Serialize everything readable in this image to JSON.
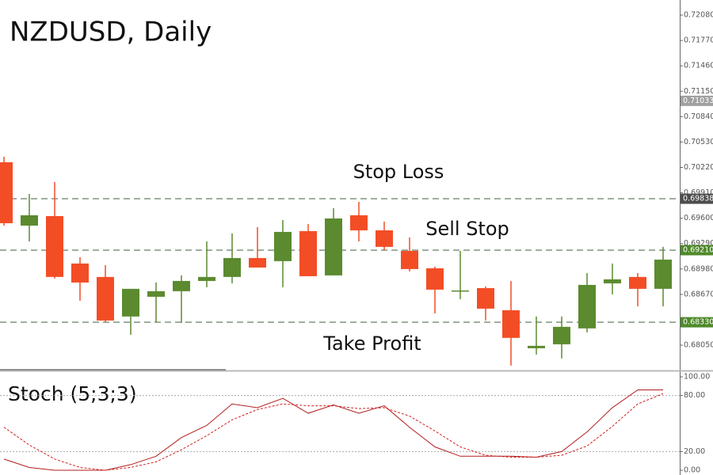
{
  "chart_data": [
    {
      "type": "candlestick",
      "title": "NZDUSD, Daily",
      "up_color": "#5b8a2f",
      "down_color": "#f34d26",
      "open": [
        0.70283,
        0.6951,
        0.69626,
        0.69047,
        0.68883,
        0.684,
        0.68641,
        0.68709,
        0.68834,
        0.68883,
        0.69114,
        0.69076,
        0.69443,
        0.68902,
        0.69636,
        0.69452,
        0.69201,
        0.68989,
        0.68709,
        0.68747,
        0.68477,
        0.68013,
        0.68061,
        0.68255,
        0.68805,
        0.68883,
        0.68738
      ],
      "high": [
        0.70351,
        0.69897,
        0.70042,
        0.69124,
        0.69027,
        0.68738,
        0.68815,
        0.68902,
        0.69317,
        0.69414,
        0.69491,
        0.69578,
        0.6953,
        0.69723,
        0.698,
        0.69559,
        0.69366,
        0.69008,
        0.69201,
        0.68767,
        0.68834,
        0.684,
        0.684,
        0.68931,
        0.69047,
        0.68931,
        0.6925
      ],
      "low": [
        0.6951,
        0.69317,
        0.68863,
        0.68593,
        0.68332,
        0.68177,
        0.68332,
        0.68322,
        0.68757,
        0.68805,
        0.68998,
        0.68757,
        0.68892,
        0.68902,
        0.69317,
        0.69211,
        0.6895,
        0.68438,
        0.68612,
        0.68351,
        0.67801,
        0.67936,
        0.67888,
        0.68206,
        0.6867,
        0.68525,
        0.68525
      ],
      "close": [
        0.69539,
        0.69636,
        0.68883,
        0.68815,
        0.68351,
        0.68738,
        0.68709,
        0.68834,
        0.68883,
        0.69114,
        0.68998,
        0.69433,
        0.68892,
        0.69597,
        0.69452,
        0.6925,
        0.68979,
        0.68728,
        0.68718,
        0.68496,
        0.68139,
        0.68042,
        0.68274,
        0.68786,
        0.68854,
        0.68738,
        0.69095
      ],
      "ylim": [
        0.67741,
        0.72264
      ],
      "yticks": [
        {
          "value": 0.7208,
          "label": "0.72080"
        },
        {
          "value": 0.7177,
          "label": "0.71770"
        },
        {
          "value": 0.7146,
          "label": "0.71460"
        },
        {
          "value": 0.7115,
          "label": "0.71150"
        },
        {
          "value": 0.7084,
          "label": "0.70840"
        },
        {
          "value": 0.7053,
          "label": "0.70530"
        },
        {
          "value": 0.7022,
          "label": "0.70220"
        },
        {
          "value": 0.6991,
          "label": "0.69910"
        },
        {
          "value": 0.696,
          "label": "0.69600"
        },
        {
          "value": 0.6929,
          "label": "0.69290"
        },
        {
          "value": 0.6898,
          "label": "0.68980"
        },
        {
          "value": 0.6867,
          "label": "0.68670"
        },
        {
          "value": 0.6805,
          "label": "0.68050"
        }
      ],
      "levels": [
        {
          "name": "Stop Loss",
          "value": 0.69838,
          "label": "0.69838",
          "color": "#4d4d4d"
        },
        {
          "name": "Sell Stop",
          "value": 0.6921,
          "label": "0.69210",
          "color": "#4f8a2a"
        },
        {
          "name": "Take Profit",
          "value": 0.6833,
          "label": "0.68330",
          "color": "#4f8a2a"
        }
      ],
      "price_marker": {
        "value": 0.71033,
        "label": "0.71033",
        "color": "#a0a0a0"
      }
    },
    {
      "type": "line",
      "title": "Stoch (5;3;3)",
      "series": [
        {
          "color": "#b21e1e",
          "dashed": false,
          "values": [
            12,
            3,
            0,
            0,
            0,
            6,
            15,
            35,
            48,
            71,
            67,
            77,
            61,
            70,
            61,
            69,
            46,
            25,
            15,
            15,
            15,
            14,
            20,
            41,
            67,
            86,
            86
          ]
        },
        {
          "color": "#d42020",
          "dashed": true,
          "values": [
            46,
            27,
            12,
            3,
            0,
            3,
            9,
            22,
            37,
            54,
            65,
            71,
            69,
            69,
            66,
            67,
            58,
            42,
            25,
            16,
            14,
            14,
            16,
            26,
            47,
            71,
            82
          ]
        }
      ],
      "ylim": [
        0,
        100
      ],
      "yticks": [
        {
          "value": 100,
          "label": "100.00"
        },
        {
          "value": 80,
          "label": "80.00"
        },
        {
          "value": 20,
          "label": "20.00"
        },
        {
          "value": 0,
          "label": "0.00"
        }
      ],
      "grid_levels": [
        80,
        20
      ]
    }
  ]
}
